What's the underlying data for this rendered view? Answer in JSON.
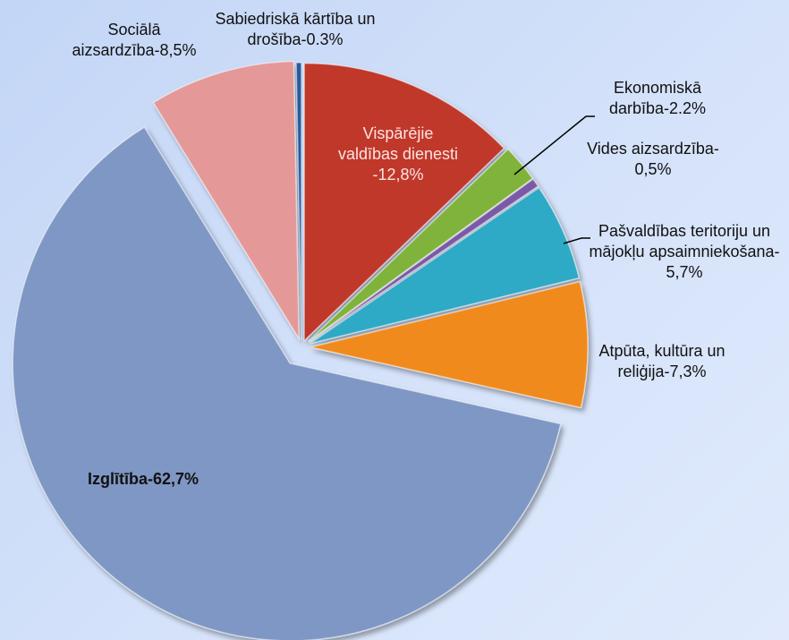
{
  "chart_data": {
    "type": "pie",
    "categories": [
      "Vispārējie valdības dienesti -",
      "Ekonomiskā darbība-",
      "Vides aizsardzība-",
      "Pašvaldības teritoriju un mājokļu apsaimniekošana-",
      "Atpūta, kultūra un reliģija-",
      "Izglītība-",
      "Sociālā aizsardzība-",
      "Sabiedriskā kārtība un drošība-"
    ],
    "values": [
      12.8,
      2.2,
      0.5,
      5.7,
      7.3,
      62.7,
      8.5,
      0.3
    ],
    "value_labels": [
      "12,8%",
      "2.2%",
      "0,5%",
      "5,7%",
      "7,3%",
      "62,7%",
      "8,5%",
      "0.3%"
    ],
    "colors": [
      "#c0392b",
      "#7fb33a",
      "#7a5aa6",
      "#2fa9c6",
      "#f08a1c",
      "#7f97c4",
      "#e49898",
      "#2a5a9c"
    ]
  }
}
